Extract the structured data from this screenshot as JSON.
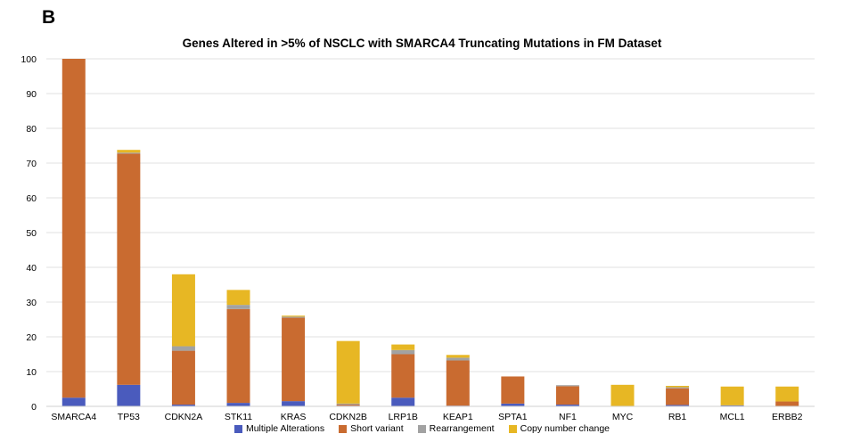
{
  "panel_label": "B",
  "colors": {
    "Multiple Alterations": "#4a5bbd",
    "Short variant": "#c96b30",
    "Rearrangement": "#a2a2a2",
    "Copy number change": "#e7b724",
    "grid": "#e0e0e0"
  },
  "chart_data": {
    "type": "bar",
    "stacked": true,
    "title": "Genes Altered in >5% of NSCLC with SMARCA4 Truncating Mutations in FM Dataset",
    "xlabel": "",
    "ylabel": "",
    "ylim": [
      0,
      100
    ],
    "yticks": [
      0,
      10,
      20,
      30,
      40,
      50,
      60,
      70,
      80,
      90,
      100
    ],
    "grid": true,
    "legend_position": "bottom",
    "categories": [
      "SMARCA4",
      "TP53",
      "CDKN2A",
      "STK11",
      "KRAS",
      "CDKN2B",
      "LRP1B",
      "KEAP1",
      "SPTA1",
      "NF1",
      "MYC",
      "RB1",
      "MCL1",
      "ERBB2"
    ],
    "series": [
      {
        "name": "Multiple Alterations",
        "values": [
          2.5,
          6.2,
          0.5,
          1.0,
          1.5,
          0.2,
          2.5,
          0.2,
          0.8,
          0.5,
          0.0,
          0.4,
          0.3,
          0.0
        ]
      },
      {
        "name": "Short variant",
        "values": [
          97.5,
          66.5,
          15.5,
          27.0,
          24.0,
          0.3,
          12.5,
          13.0,
          7.8,
          5.3,
          0.0,
          4.8,
          0.0,
          1.4
        ]
      },
      {
        "name": "Rearrangement",
        "values": [
          0.0,
          0.3,
          1.3,
          1.2,
          0.3,
          0.3,
          1.2,
          0.8,
          0.0,
          0.3,
          0.0,
          0.3,
          0.0,
          0.0
        ]
      },
      {
        "name": "Copy number change",
        "values": [
          0.0,
          0.8,
          20.7,
          4.3,
          0.3,
          18.0,
          1.6,
          0.8,
          0.0,
          0.0,
          6.2,
          0.4,
          5.4,
          4.3
        ]
      }
    ]
  }
}
